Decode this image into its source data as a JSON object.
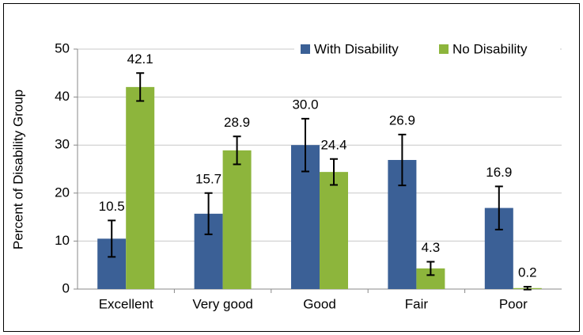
{
  "chart_data": {
    "type": "bar",
    "y_label": "Percent of Disability Group",
    "categories": [
      "Excellent",
      "Very good",
      "Good",
      "Fair",
      "Poor"
    ],
    "series": [
      {
        "name": "With Disability",
        "color": "#3b6096",
        "values": [
          10.5,
          15.7,
          30.0,
          26.9,
          16.9
        ],
        "value_labels": [
          "10.5",
          "15.7",
          "30.0",
          "26.9",
          "16.9"
        ],
        "errors": [
          3.8,
          4.3,
          5.5,
          5.3,
          4.5
        ]
      },
      {
        "name": "No Disability",
        "color": "#8db53c",
        "values": [
          42.1,
          28.9,
          24.4,
          4.3,
          0.2
        ],
        "value_labels": [
          "42.1",
          "28.9",
          "24.4",
          "4.3",
          "0.2"
        ],
        "errors": [
          2.9,
          2.9,
          2.7,
          1.4,
          0.3
        ]
      }
    ],
    "ylim": [
      0,
      50
    ],
    "yticks": [
      0,
      10,
      20,
      30,
      40,
      50
    ],
    "grid": true,
    "legend": "top-right"
  }
}
